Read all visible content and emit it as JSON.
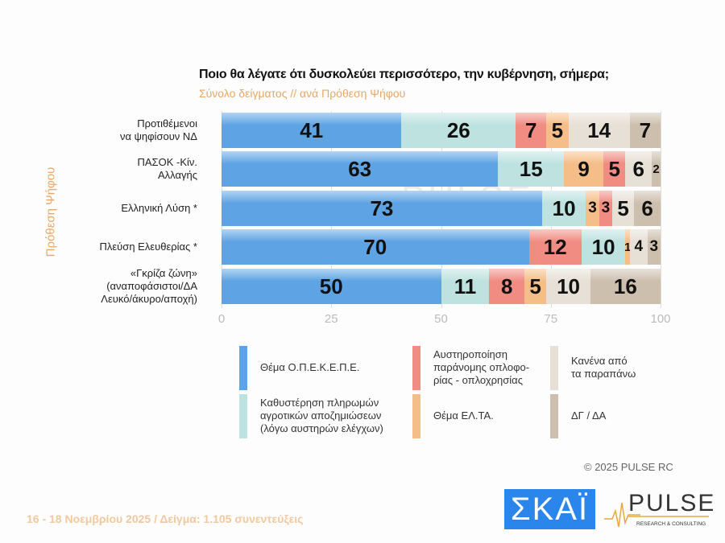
{
  "chart_data": {
    "type": "bar",
    "orientation": "horizontal",
    "stacked": true,
    "title": "Ποιο θα λέγατε ότι δυσκολεύει περισσότερο, την κυβέρνηση, σήμερα;",
    "subtitle": "Σύνολο δείγματος // ανά Πρόθεση Ψήφου",
    "ylabel": "Πρόθεση Ψήφου",
    "xlim": [
      0,
      100
    ],
    "xticks": [
      "0",
      "25",
      "50",
      "75",
      "100"
    ],
    "grid": true,
    "legend_position": "bottom",
    "categories": [
      [
        "Προτιθέμενοι",
        "να ψηφίσουν ΝΔ"
      ],
      [
        "ΠΑΣΟΚ -Κίν.",
        "Αλλαγής"
      ],
      [
        "Ελληνική Λύση *"
      ],
      [
        "Πλεύση Ελευθερίας *"
      ],
      [
        "«Γκρίζα ζώνη»",
        "(αναποφάσιστοι/ΔΑ",
        "Λευκό/άκυρο/αποχή)"
      ]
    ],
    "series": [
      {
        "name": "Θέμα Ο.Π.Ε.Κ.Ε.Π.Ε.",
        "color": "#5ea4e4",
        "values": [
          41,
          63,
          73,
          70,
          50
        ]
      },
      {
        "name": "Καθυστέρηση πληρωμών αγροτικών αποζημιώσεων (λόγω αυστηρών ελέγχων)",
        "color": "#bde2e0",
        "values": [
          26,
          15,
          10,
          10,
          11
        ]
      },
      {
        "name": "Αυστηροποίηση παράνομης οπλοφο-ρίας - οπλοχρησίας",
        "color": "#f08c82",
        "values": [
          7,
          5,
          3,
          12,
          8
        ]
      },
      {
        "name": "Θέμα ΕΛ.ΤΑ.",
        "color": "#f5be88",
        "values": [
          5,
          9,
          3,
          1,
          5
        ]
      },
      {
        "name": "Κανένα από τα παραπάνω",
        "color": "#e7e0d6",
        "values": [
          14,
          6,
          5,
          4,
          10
        ]
      },
      {
        "name": "ΔΓ / ΔΑ",
        "color": "#cdbfae",
        "values": [
          7,
          2,
          6,
          3,
          16
        ]
      }
    ],
    "segment_order": [
      [
        0,
        1,
        2,
        3,
        4,
        5
      ],
      [
        0,
        1,
        3,
        2,
        4,
        5
      ],
      [
        0,
        1,
        3,
        2,
        4,
        5
      ],
      [
        0,
        2,
        1,
        3,
        4,
        5
      ],
      [
        0,
        1,
        2,
        3,
        4,
        5
      ]
    ]
  },
  "legend_lines": [
    [
      "Θέμα Ο.Π.Ε.Κ.Ε.Π.Ε."
    ],
    [
      "Καθυστέρηση πληρωμών",
      "αγροτικών αποζημιώσεων",
      "(λόγω αυστηρών ελέγχων)"
    ],
    [
      "Αυστηροποίηση",
      "παράνομης οπλοφο-",
      "ρίας - οπλοχρησίας"
    ],
    [
      "Θέμα ΕΛ.ΤΑ."
    ],
    [
      "Κανένα από",
      "τα παραπάνω"
    ],
    [
      "ΔΓ / ΔΑ"
    ]
  ],
  "footer": "16 - 18 Νοεμβρίου 2025  /  Δείγμα:  1.105 συνεντεύξεις",
  "copyright": "©  2025  PULSE RC",
  "logos": {
    "skai": "ΣΚΑΪ",
    "pulse": "PULSE",
    "pulse_sub": "RESEARCH & CONSULTING",
    "watermark": "PULSE"
  }
}
